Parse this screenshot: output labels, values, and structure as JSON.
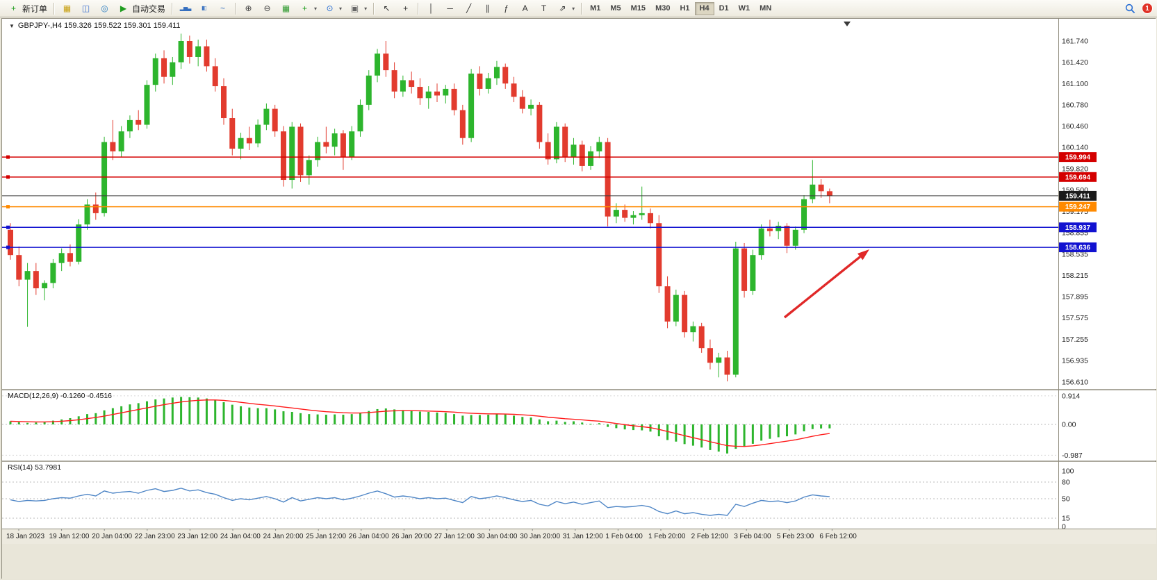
{
  "toolbar": {
    "buttons": [
      {
        "t": "btn",
        "name": "new-order-button",
        "icon": "new_order",
        "icon_color": "#1f9d1f",
        "label": "新订单"
      },
      {
        "t": "sep"
      },
      {
        "t": "ico",
        "name": "charts-grid-icon",
        "g": "▦",
        "c": "#c8a012"
      },
      {
        "t": "ico",
        "name": "market-watch-icon",
        "g": "◫",
        "c": "#3a6fd0"
      },
      {
        "t": "ico",
        "name": "web-terminal-icon",
        "g": "◎",
        "c": "#2e7fc2"
      },
      {
        "t": "btn",
        "name": "autotrading-button",
        "icon": "play",
        "icon_color": "#1f9d1f",
        "label": "自动交易"
      },
      {
        "t": "sep"
      },
      {
        "t": "ico",
        "name": "chart-bars-icon",
        "g": "▂▅▃",
        "c": "#356fbf",
        "small": true
      },
      {
        "t": "ico",
        "name": "chart-candles-icon",
        "g": "▮▯",
        "c": "#356fbf",
        "small": true
      },
      {
        "t": "ico",
        "name": "chart-line-icon",
        "g": "~",
        "c": "#356fbf"
      },
      {
        "t": "sep"
      },
      {
        "t": "ico",
        "name": "zoom-in-icon",
        "g": "⊕",
        "c": "#444"
      },
      {
        "t": "ico",
        "name": "zoom-out-icon",
        "g": "⊖",
        "c": "#444"
      },
      {
        "t": "ico",
        "name": "tile-windows-icon",
        "g": "▦",
        "c": "#2f9a2f"
      },
      {
        "t": "drop",
        "name": "add-indicator-button",
        "g": "+",
        "c": "#1f9d1f"
      },
      {
        "t": "drop",
        "name": "periods-button",
        "g": "⊙",
        "c": "#2a6fd4"
      },
      {
        "t": "drop",
        "name": "templates-button",
        "g": "▣",
        "c": "#666"
      },
      {
        "t": "sep"
      },
      {
        "t": "ico",
        "name": "cursor-icon",
        "g": "↖",
        "c": "#333"
      },
      {
        "t": "ico",
        "name": "crosshair-icon",
        "g": "+",
        "c": "#333"
      },
      {
        "t": "sep"
      },
      {
        "t": "ico",
        "name": "vertical-line-icon",
        "g": "│",
        "c": "#333"
      },
      {
        "t": "ico",
        "name": "horizontal-line-icon",
        "g": "─",
        "c": "#333"
      },
      {
        "t": "ico",
        "name": "trendline-icon",
        "g": "╱",
        "c": "#333"
      },
      {
        "t": "ico",
        "name": "channel-icon",
        "g": "∥",
        "c": "#333"
      },
      {
        "t": "ico",
        "name": "fibonacci-icon",
        "g": "ƒ",
        "c": "#333"
      },
      {
        "t": "ico",
        "name": "text-icon",
        "g": "A",
        "c": "#333"
      },
      {
        "t": "ico",
        "name": "text-label-icon",
        "g": "T",
        "c": "#333"
      },
      {
        "t": "drop",
        "name": "shapes-button",
        "g": "⇗",
        "c": "#333"
      },
      {
        "t": "sep"
      },
      {
        "t": "tfgroup"
      },
      {
        "t": "spacer"
      },
      {
        "t": "search"
      },
      {
        "t": "badge"
      }
    ],
    "timeframes": [
      "M1",
      "M5",
      "M15",
      "M30",
      "H1",
      "H4",
      "D1",
      "W1",
      "MN"
    ],
    "active_timeframe": "H4",
    "badge_count": "1"
  },
  "icons": {
    "caret_down": "▼",
    "dropdown": "▾",
    "new_order": "+",
    "play": "▶"
  },
  "chart": {
    "title": "GBPJPY-,H4 159.326 159.522 159.301 159.411",
    "symbol": "GBPJPY-",
    "period": "H4",
    "open": "159.326",
    "high": "159.522",
    "low": "159.301",
    "close": "159.411"
  },
  "macd": {
    "label": "MACD(12,26,9) -0.1260 -0.4516"
  },
  "rsi": {
    "label": "RSI(14) 53.7981"
  },
  "colors": {
    "up": "#2db52d",
    "down": "#e23b2e",
    "macd_hist": "#2db52d",
    "macd_signal": "#ff1a1a",
    "rsi_line": "#4f86c6",
    "bid_line": "#3c3c3c",
    "pane_border": "#8f8b7d",
    "dash": "#b9b9b9",
    "axis_text": "#1c1c1c"
  },
  "chart_data": {
    "type": "candlestick",
    "symbol": "GBPJPY-",
    "timeframe": "H4",
    "price_scale": [
      "161.740",
      "161.420",
      "161.100",
      "160.780",
      "160.460",
      "160.140",
      "159.820",
      "159.500",
      "159.175",
      "158.855",
      "158.535",
      "158.215",
      "157.895",
      "157.575",
      "157.255",
      "156.935",
      "156.610"
    ],
    "candles": [
      [
        158.9,
        159.0,
        158.45,
        158.52
      ],
      [
        158.52,
        158.65,
        158.05,
        158.15
      ],
      [
        158.15,
        158.4,
        157.44,
        158.28
      ],
      [
        158.28,
        158.4,
        157.92,
        158.02
      ],
      [
        158.02,
        158.14,
        157.84,
        158.1
      ],
      [
        158.1,
        158.46,
        158.02,
        158.4
      ],
      [
        158.4,
        158.62,
        158.28,
        158.55
      ],
      [
        158.55,
        158.68,
        158.35,
        158.42
      ],
      [
        158.42,
        159.06,
        158.38,
        158.98
      ],
      [
        158.98,
        159.36,
        158.9,
        159.28
      ],
      [
        159.28,
        159.46,
        159.05,
        159.15
      ],
      [
        159.15,
        160.3,
        159.1,
        160.22
      ],
      [
        160.22,
        160.55,
        159.95,
        160.08
      ],
      [
        160.08,
        160.46,
        160.0,
        160.38
      ],
      [
        160.38,
        160.62,
        160.28,
        160.55
      ],
      [
        160.55,
        160.7,
        160.4,
        160.48
      ],
      [
        160.48,
        161.15,
        160.42,
        161.08
      ],
      [
        161.08,
        161.55,
        160.98,
        161.48
      ],
      [
        161.48,
        161.6,
        161.1,
        161.2
      ],
      [
        161.2,
        161.5,
        161.08,
        161.42
      ],
      [
        161.42,
        161.85,
        161.32,
        161.74
      ],
      [
        161.74,
        161.82,
        161.4,
        161.5
      ],
      [
        161.5,
        161.76,
        161.36,
        161.66
      ],
      [
        161.66,
        161.76,
        161.28,
        161.36
      ],
      [
        161.36,
        161.48,
        160.98,
        161.06
      ],
      [
        161.06,
        161.18,
        160.48,
        160.58
      ],
      [
        160.58,
        160.72,
        160.02,
        160.12
      ],
      [
        160.12,
        160.36,
        159.96,
        160.28
      ],
      [
        160.28,
        160.45,
        160.1,
        160.2
      ],
      [
        160.2,
        160.56,
        160.14,
        160.48
      ],
      [
        160.48,
        160.8,
        160.4,
        160.72
      ],
      [
        160.72,
        160.78,
        160.3,
        160.38
      ],
      [
        160.38,
        160.46,
        159.55,
        159.65
      ],
      [
        159.65,
        160.52,
        159.52,
        160.45
      ],
      [
        160.45,
        160.5,
        159.62,
        159.72
      ],
      [
        159.72,
        160.02,
        159.58,
        159.95
      ],
      [
        159.95,
        160.3,
        159.85,
        160.22
      ],
      [
        160.22,
        160.45,
        160.05,
        160.15
      ],
      [
        160.15,
        160.42,
        160.02,
        160.35
      ],
      [
        160.35,
        160.4,
        159.8,
        160.0
      ],
      [
        160.0,
        160.46,
        159.95,
        160.38
      ],
      [
        160.38,
        160.86,
        160.3,
        160.78
      ],
      [
        160.78,
        161.3,
        160.7,
        161.22
      ],
      [
        161.22,
        161.62,
        161.12,
        161.55
      ],
      [
        161.55,
        161.74,
        161.2,
        161.3
      ],
      [
        161.3,
        161.42,
        160.88,
        160.98
      ],
      [
        160.98,
        161.22,
        160.9,
        161.15
      ],
      [
        161.15,
        161.28,
        160.95,
        161.05
      ],
      [
        161.05,
        161.18,
        160.78,
        160.88
      ],
      [
        160.88,
        161.06,
        160.72,
        160.98
      ],
      [
        160.98,
        161.1,
        160.82,
        160.92
      ],
      [
        160.92,
        161.08,
        160.8,
        161.02
      ],
      [
        161.02,
        161.1,
        160.62,
        160.7
      ],
      [
        160.7,
        160.78,
        160.18,
        160.28
      ],
      [
        160.28,
        161.32,
        160.22,
        161.25
      ],
      [
        161.25,
        161.36,
        160.92,
        161.02
      ],
      [
        161.02,
        161.26,
        160.95,
        161.18
      ],
      [
        161.18,
        161.44,
        161.08,
        161.35
      ],
      [
        161.35,
        161.4,
        161.02,
        161.1
      ],
      [
        161.1,
        161.2,
        160.82,
        160.9
      ],
      [
        160.9,
        161.0,
        160.65,
        160.72
      ],
      [
        160.72,
        160.86,
        160.62,
        160.78
      ],
      [
        160.78,
        160.82,
        160.12,
        160.22
      ],
      [
        160.22,
        160.35,
        159.88,
        159.96
      ],
      [
        159.96,
        160.52,
        159.9,
        160.45
      ],
      [
        160.45,
        160.5,
        159.92,
        160.0
      ],
      [
        160.0,
        160.28,
        159.88,
        160.18
      ],
      [
        160.18,
        160.24,
        159.78,
        159.86
      ],
      [
        159.86,
        160.16,
        159.8,
        160.08
      ],
      [
        160.08,
        160.3,
        159.98,
        160.22
      ],
      [
        160.22,
        160.28,
        158.95,
        159.1
      ],
      [
        159.1,
        159.3,
        159.0,
        159.2
      ],
      [
        159.2,
        159.28,
        159.02,
        159.08
      ],
      [
        159.08,
        159.18,
        158.98,
        159.12
      ],
      [
        159.12,
        159.55,
        159.05,
        159.15
      ],
      [
        159.15,
        159.22,
        158.92,
        159.0
      ],
      [
        159.0,
        159.12,
        157.95,
        158.05
      ],
      [
        158.05,
        158.2,
        157.42,
        157.52
      ],
      [
        157.52,
        158.0,
        157.45,
        157.92
      ],
      [
        157.92,
        157.98,
        157.28,
        157.36
      ],
      [
        157.36,
        157.52,
        157.22,
        157.45
      ],
      [
        157.45,
        157.5,
        157.05,
        157.12
      ],
      [
        157.12,
        157.25,
        156.8,
        156.9
      ],
      [
        156.9,
        157.05,
        156.68,
        156.98
      ],
      [
        156.98,
        157.08,
        156.62,
        156.72
      ],
      [
        156.72,
        158.72,
        156.68,
        158.62
      ],
      [
        158.62,
        158.7,
        157.88,
        157.98
      ],
      [
        157.98,
        158.6,
        157.92,
        158.52
      ],
      [
        158.52,
        158.98,
        158.45,
        158.92
      ],
      [
        158.92,
        159.05,
        158.8,
        158.88
      ],
      [
        158.88,
        159.02,
        158.76,
        158.96
      ],
      [
        158.96,
        159.0,
        158.55,
        158.66
      ],
      [
        158.66,
        158.95,
        158.6,
        158.9
      ],
      [
        158.9,
        159.42,
        158.85,
        159.36
      ],
      [
        159.36,
        159.95,
        159.3,
        159.58
      ],
      [
        159.58,
        159.66,
        159.38,
        159.48
      ],
      [
        159.48,
        159.52,
        159.3,
        159.411
      ]
    ],
    "levels": [
      {
        "price": 159.994,
        "label": "159.994",
        "color": "#d40000",
        "handle": true
      },
      {
        "price": 159.694,
        "label": "159.694",
        "color": "#d40000",
        "handle": true
      },
      {
        "price": 159.411,
        "label": "159.411",
        "color": "#1a1a1a",
        "bid": true
      },
      {
        "price": 159.247,
        "label": "159.247",
        "color": "#ff8a00",
        "handle": true
      },
      {
        "price": 158.937,
        "label": "158.937",
        "color": "#1212d0",
        "handle": true
      },
      {
        "price": 158.636,
        "label": "158.636",
        "color": "#1212d0",
        "handle": true
      }
    ],
    "macd": {
      "params": [
        12,
        26,
        9
      ],
      "last_macd": -0.126,
      "last_signal": -0.4516,
      "scale": [
        "0.914",
        "0.00",
        "-0.987"
      ],
      "values": [
        0.1,
        0.07,
        0.05,
        0.06,
        0.08,
        0.12,
        0.16,
        0.2,
        0.26,
        0.33,
        0.36,
        0.45,
        0.52,
        0.58,
        0.64,
        0.68,
        0.74,
        0.8,
        0.83,
        0.86,
        0.88,
        0.87,
        0.86,
        0.83,
        0.78,
        0.71,
        0.63,
        0.58,
        0.54,
        0.52,
        0.52,
        0.48,
        0.42,
        0.4,
        0.36,
        0.33,
        0.32,
        0.31,
        0.32,
        0.31,
        0.33,
        0.37,
        0.43,
        0.49,
        0.51,
        0.48,
        0.46,
        0.44,
        0.41,
        0.4,
        0.38,
        0.37,
        0.33,
        0.28,
        0.3,
        0.3,
        0.31,
        0.33,
        0.32,
        0.28,
        0.24,
        0.22,
        0.16,
        0.1,
        0.12,
        0.08,
        0.1,
        0.06,
        0.02,
        0.04,
        -0.08,
        -0.12,
        -0.16,
        -0.18,
        -0.19,
        -0.23,
        -0.38,
        -0.5,
        -0.55,
        -0.63,
        -0.68,
        -0.74,
        -0.82,
        -0.87,
        -0.93,
        -0.78,
        -0.72,
        -0.62,
        -0.52,
        -0.46,
        -0.41,
        -0.38,
        -0.32,
        -0.22,
        -0.15,
        -0.13,
        -0.126
      ]
    },
    "rsi": {
      "period": 14,
      "last": 53.7981,
      "scale": [
        "100",
        "80",
        "50",
        "15",
        "0"
      ],
      "dashed_levels": [
        80,
        50,
        15
      ],
      "values": [
        48,
        45,
        47,
        46,
        47,
        50,
        52,
        51,
        55,
        58,
        55,
        64,
        60,
        62,
        63,
        60,
        65,
        68,
        63,
        65,
        69,
        64,
        66,
        61,
        58,
        52,
        47,
        50,
        48,
        51,
        54,
        50,
        44,
        52,
        46,
        49,
        52,
        50,
        52,
        48,
        51,
        55,
        60,
        64,
        59,
        53,
        55,
        53,
        50,
        52,
        50,
        51,
        47,
        43,
        54,
        50,
        52,
        55,
        52,
        48,
        45,
        47,
        40,
        37,
        45,
        41,
        44,
        40,
        43,
        46,
        34,
        36,
        35,
        36,
        38,
        35,
        27,
        23,
        28,
        23,
        25,
        22,
        20,
        22,
        20,
        40,
        36,
        42,
        47,
        45,
        46,
        43,
        46,
        53,
        57,
        55,
        53.8
      ]
    },
    "time_labels": [
      "18 Jan 2023",
      "19 Jan 12:00",
      "20 Jan 04:00",
      "22 Jan 23:00",
      "23 Jan 12:00",
      "24 Jan 04:00",
      "24 Jan 20:00",
      "25 Jan 12:00",
      "26 Jan 04:00",
      "26 Jan 20:00",
      "27 Jan 12:00",
      "30 Jan 04:00",
      "30 Jan 20:00",
      "31 Jan 12:00",
      "1 Feb 04:00",
      "1 Feb 20:00",
      "2 Feb 12:00",
      "3 Feb 04:00",
      "5 Feb 23:00",
      "6 Feb 12:00"
    ],
    "arrow": {
      "from": [
        1128,
        456
      ],
      "to": [
        1250,
        358
      ],
      "color": "#e02828"
    }
  }
}
